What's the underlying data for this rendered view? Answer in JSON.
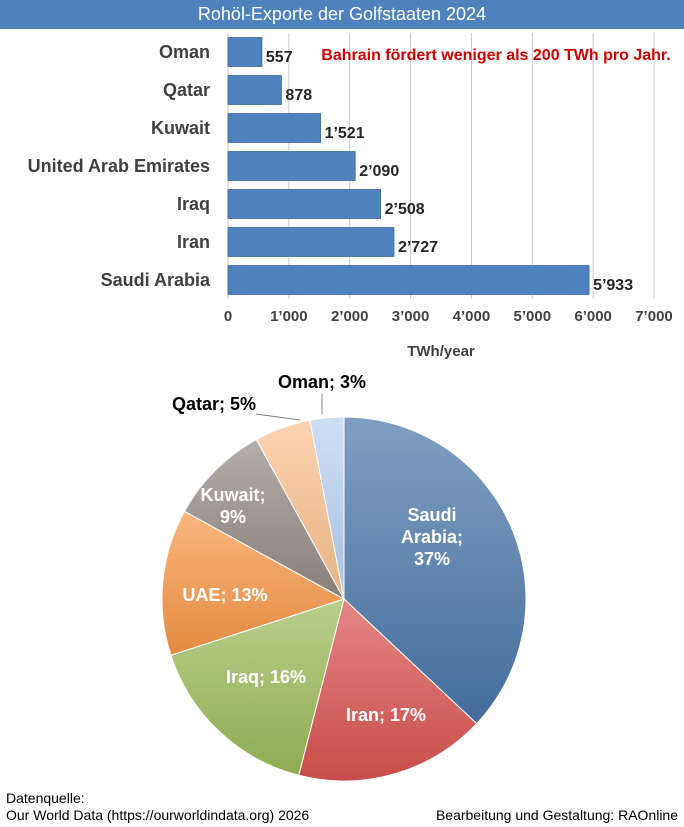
{
  "chart_data": [
    {
      "type": "bar",
      "orientation": "horizontal",
      "title": "Rohöl-Exporte der Golfstaaten 2024",
      "xlabel": "TWh/year",
      "ylabel": "",
      "categories": [
        "Oman",
        "Qatar",
        "Kuwait",
        "United Arab Emirates",
        "Iraq",
        "Iran",
        "Saudi Arabia"
      ],
      "values": [
        557,
        878,
        1521,
        2090,
        2508,
        2727,
        5933
      ],
      "value_labels": [
        "557",
        "878",
        "1’521",
        "2’090",
        "2’508",
        "2’727",
        "5’933"
      ],
      "xlim": [
        0,
        7000
      ],
      "ticks": [
        0,
        1000,
        2000,
        3000,
        4000,
        5000,
        6000,
        7000
      ],
      "tick_labels": [
        "0",
        "1’000",
        "2’000",
        "3’000",
        "4’000",
        "5’000",
        "6’000",
        "7’000"
      ],
      "grid": "vertical",
      "bar_color": "#4f81bd",
      "annotation": "Bahrain fördert weniger als 200 TWh pro Jahr.",
      "annotation_color": "#cc0000"
    },
    {
      "type": "pie",
      "slices": [
        {
          "label": "Saudi Arabia; 37%",
          "value": 37,
          "color": "#4a76a8"
        },
        {
          "label": "Iran; 17%",
          "value": 17,
          "color": "#d9534f"
        },
        {
          "label": "Iraq; 16%",
          "value": 16,
          "color": "#9bbb59"
        },
        {
          "label": "UAE; 13%",
          "value": 13,
          "color": "#f79646"
        },
        {
          "label": "Kuwait; 9%",
          "value": 9,
          "color": "#948a84"
        },
        {
          "label": "Qatar; 5%",
          "value": 5,
          "color": "#fac090"
        },
        {
          "label": "Oman; 3%",
          "value": 3,
          "color": "#b9d1f0"
        }
      ]
    }
  ],
  "footer": {
    "source_heading": "Datenquelle:",
    "source": "Our World Data (https://ourworldindata.org) 2026",
    "credit": "Bearbeitung und Gestaltung: RAOnline"
  }
}
